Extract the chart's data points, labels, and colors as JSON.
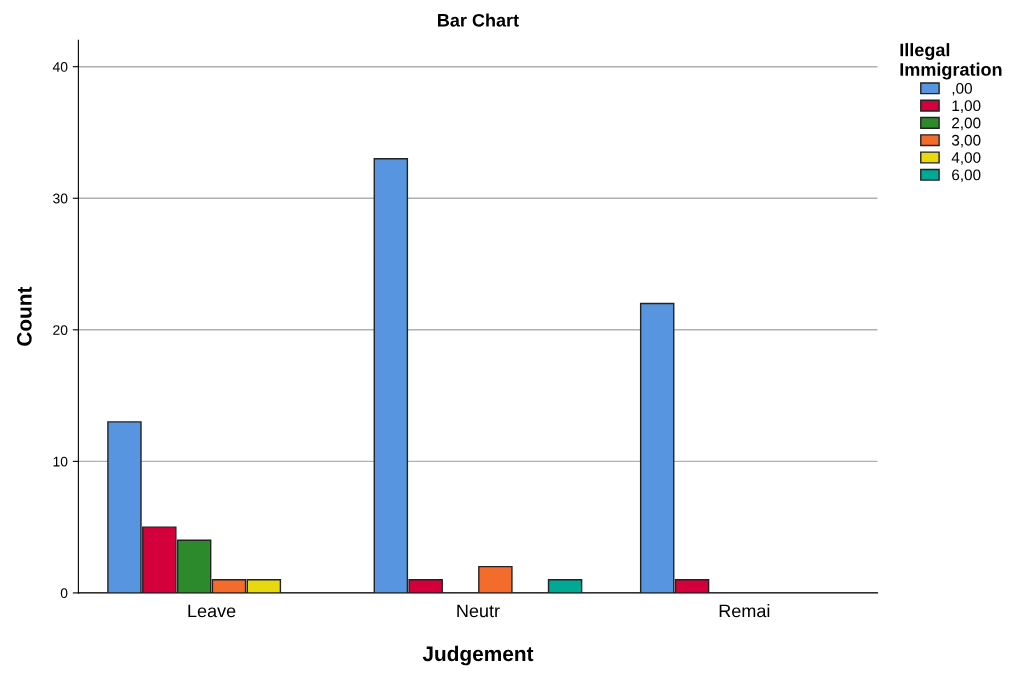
{
  "chart_data": {
    "type": "bar",
    "title": "Bar Chart",
    "xlabel": "Judgement",
    "ylabel": "Count",
    "legend_title": "Illegal\nImmigration",
    "categories": [
      "Leave",
      "Neutr",
      "Remai"
    ],
    "series": [
      {
        "name": ",00",
        "color": "#5895e0",
        "values": [
          13,
          33,
          22
        ]
      },
      {
        "name": "1,00",
        "color": "#d3003b",
        "values": [
          5,
          1,
          1
        ]
      },
      {
        "name": "2,00",
        "color": "#2c8a2c",
        "values": [
          4,
          null,
          null
        ]
      },
      {
        "name": "3,00",
        "color": "#f36c2c",
        "values": [
          1,
          2,
          null
        ]
      },
      {
        "name": "4,00",
        "color": "#e8d90f",
        "values": [
          1,
          null,
          null
        ]
      },
      {
        "name": "6,00",
        "color": "#00a896",
        "values": [
          null,
          1,
          null
        ]
      }
    ],
    "ylim": [
      0,
      42
    ],
    "yticks": [
      0,
      10,
      20,
      30,
      40
    ],
    "grid": "y",
    "legend": "top right"
  }
}
